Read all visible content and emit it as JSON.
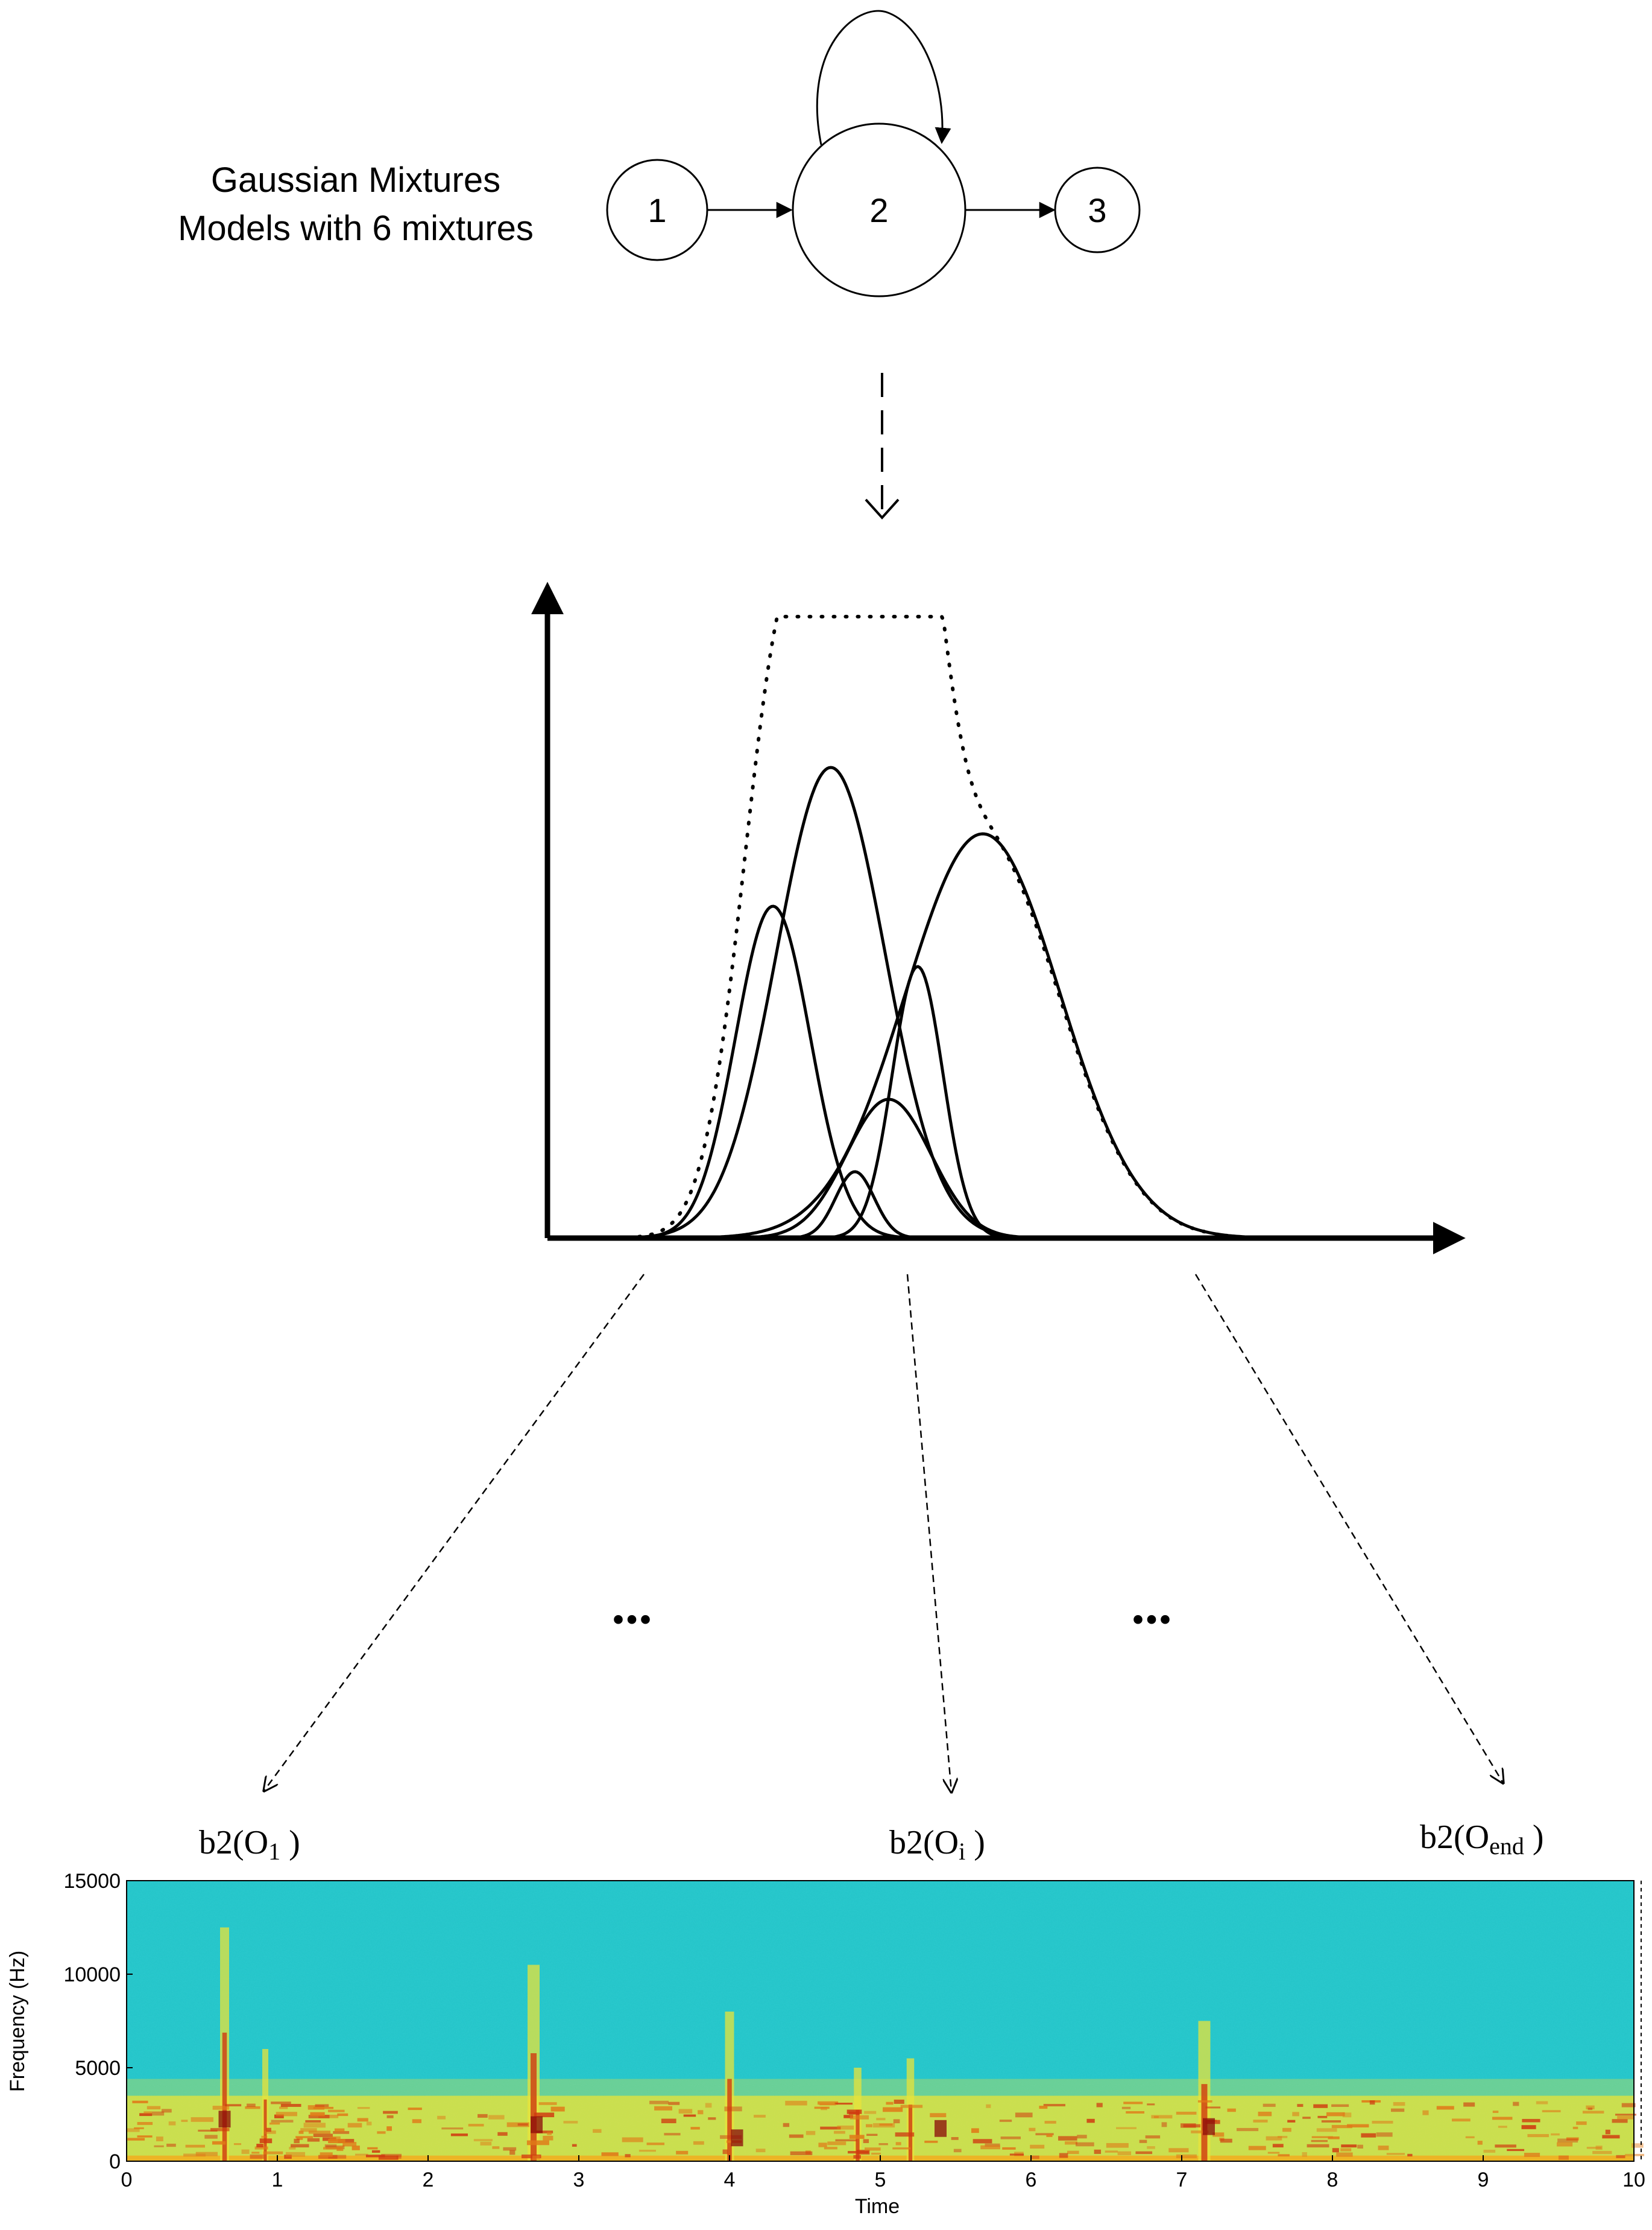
{
  "model": {
    "caption_line1": "Gaussian Mixtures",
    "caption_line2": "Models with 6 mixtures",
    "states": [
      "1",
      "2",
      "3"
    ]
  },
  "observations": {
    "first": {
      "prefix": "b2(O",
      "sub": "1",
      "suffix": " )"
    },
    "middle": {
      "prefix": "b2(O",
      "sub": "i",
      "suffix": " )"
    },
    "last": {
      "prefix": "b2(O",
      "sub": "end",
      "suffix": " )"
    },
    "ellipsis_left": "...",
    "ellipsis_right": "..."
  },
  "spectrogram": {
    "x_label": "Time",
    "y_label": "Frequency (Hz)",
    "x_ticks": [
      "0",
      "1",
      "2",
      "3",
      "4",
      "5",
      "6",
      "7",
      "8",
      "9",
      "10"
    ],
    "y_ticks": [
      "0",
      "5000",
      "10000",
      "15000"
    ],
    "colors": {
      "background": "#22c4c8",
      "band": "#e8e33a",
      "hot": "#d03a10",
      "core": "#8a0a0a"
    }
  }
}
